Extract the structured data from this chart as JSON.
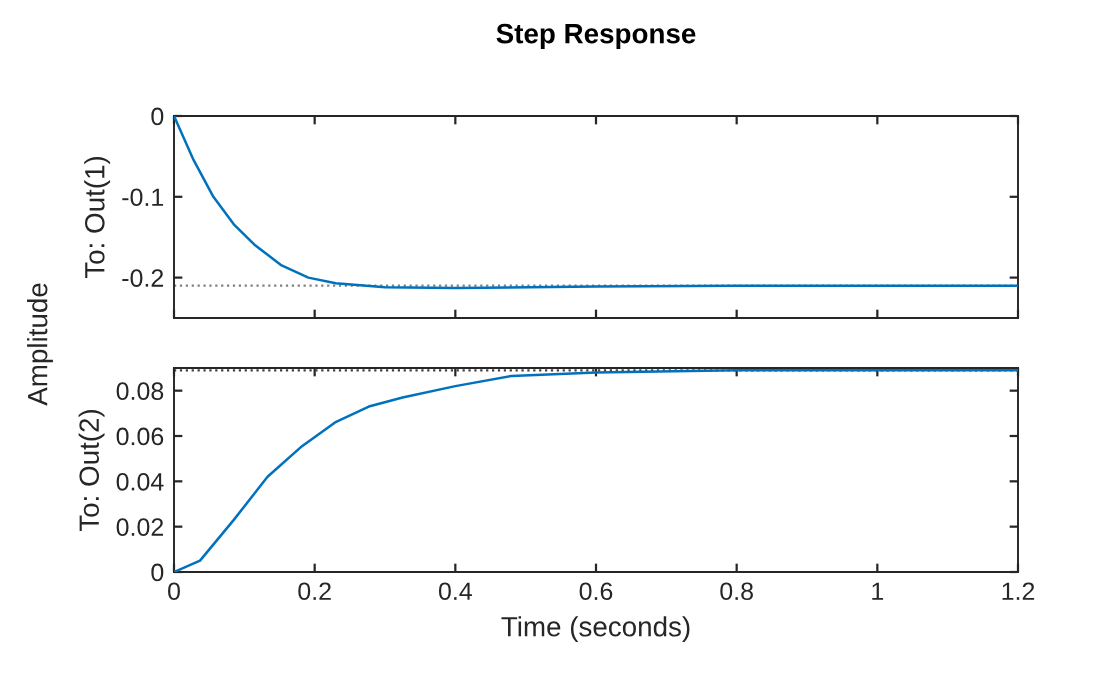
{
  "chart_data": [
    {
      "type": "line",
      "title": "Step Response",
      "ylabel": "To: Out(1)",
      "annotations": [
        "Amplitude"
      ],
      "x": [
        0,
        0.027,
        0.056,
        0.085,
        0.114,
        0.153,
        0.191,
        0.23,
        0.3,
        0.4,
        0.6,
        0.8,
        1.0,
        1.2
      ],
      "series": [
        {
          "color": "#0072bd",
          "values": [
            0,
            -0.053,
            -0.1,
            -0.134,
            -0.159,
            -0.185,
            -0.2,
            -0.207,
            -0.212,
            -0.213,
            -0.211,
            -0.21,
            -0.21,
            -0.21
          ]
        }
      ],
      "xlim": [
        0,
        1.2
      ],
      "xticks": [
        0,
        0.2,
        0.4,
        0.6,
        0.8,
        1,
        1.2
      ],
      "ylim": [
        -0.25,
        0
      ],
      "yticks": [
        0,
        -0.1,
        -0.2
      ],
      "ref_lines": [
        {
          "axis": "y",
          "value": -0.21,
          "color": "#808080",
          "line_style": "dotted"
        }
      ],
      "tick_labels": "y",
      "grid": false,
      "legend": false,
      "line_style": "solid"
    },
    {
      "type": "line",
      "xlabel": "Time (seconds)",
      "ylabel": "To: Out(2)",
      "x": [
        0,
        0.037,
        0.085,
        0.133,
        0.18,
        0.229,
        0.277,
        0.325,
        0.4,
        0.48,
        0.6,
        0.8,
        1.0,
        1.2
      ],
      "series": [
        {
          "color": "#0072bd",
          "values": [
            0,
            0.005,
            0.023,
            0.042,
            0.055,
            0.066,
            0.073,
            0.077,
            0.082,
            0.0865,
            0.088,
            0.089,
            0.089,
            0.089
          ]
        }
      ],
      "xlim": [
        0,
        1.2
      ],
      "xticks": [
        0,
        0.2,
        0.4,
        0.6,
        0.8,
        1,
        1.2
      ],
      "ylim": [
        0,
        0.09
      ],
      "yticks": [
        0,
        0.02,
        0.04,
        0.06,
        0.08
      ],
      "ref_lines": [
        {
          "axis": "y",
          "value": 0.089,
          "color": "#404040",
          "line_style": "dotted"
        }
      ],
      "grid": false,
      "legend": false,
      "line_style": "solid"
    }
  ]
}
